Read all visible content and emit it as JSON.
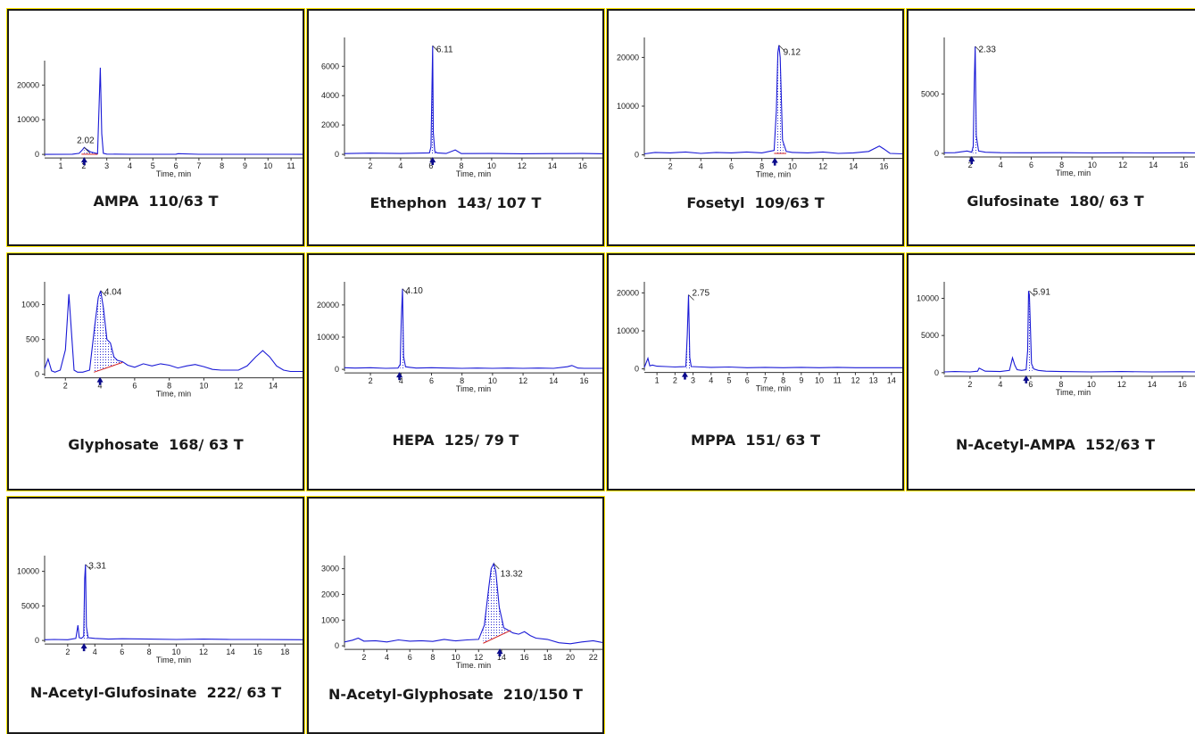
{
  "chart_data": [
    {
      "type": "line",
      "caption": "AMPA  110/63 T",
      "xlabel": "Time, min",
      "xlim": [
        0.3,
        11.5
      ],
      "ylim": [
        -1000,
        25500
      ],
      "xticks": [
        1,
        2,
        3,
        4,
        5,
        6,
        7,
        8,
        9,
        10,
        11
      ],
      "yticks": [
        0,
        10000,
        20000
      ],
      "peak_label": "2.02",
      "peak_rt": 2.02,
      "label_at": [
        1.7,
        3300
      ],
      "marker_at": 2.02,
      "series": [
        {
          "x": [
            0.3,
            1.5,
            1.8,
            1.95,
            2.02,
            2.1,
            2.3,
            2.6,
            2.72,
            2.78,
            2.85,
            3.0,
            4,
            5,
            6,
            6.1,
            7,
            8,
            9,
            10,
            11,
            11.5
          ],
          "y": [
            0,
            60,
            300,
            1400,
            2000,
            1600,
            700,
            200,
            25000,
            6000,
            300,
            80,
            30,
            40,
            50,
            200,
            40,
            30,
            30,
            20,
            20,
            10
          ]
        }
      ],
      "fill": [
        2.02,
        2.6
      ],
      "baseline": [
        [
          1.9,
          50
        ],
        [
          2.6,
          40
        ]
      ]
    },
    {
      "type": "line",
      "caption": "Ethephon  143/ 107 T",
      "xlabel": "Time, min",
      "xlim": [
        0.3,
        17.3
      ],
      "ylim": [
        -300,
        7600
      ],
      "xticks": [
        2,
        4,
        6,
        8,
        10,
        12,
        14,
        16
      ],
      "yticks": [
        0,
        2000,
        4000,
        6000
      ],
      "peak_label": "6.11",
      "peak_rt": 6.11,
      "label_at": [
        6.35,
        6950
      ],
      "marker_at": 6.11,
      "series": [
        {
          "x": [
            0.3,
            2,
            4,
            5.9,
            6.0,
            6.05,
            6.11,
            6.15,
            6.25,
            6.4,
            7,
            7.6,
            8,
            10,
            12,
            14,
            16,
            17.3
          ],
          "y": [
            50,
            80,
            60,
            100,
            500,
            3700,
            7400,
            1500,
            200,
            100,
            60,
            300,
            50,
            60,
            40,
            50,
            60,
            40
          ]
        }
      ],
      "fill": [
        6.0,
        6.3
      ],
      "baseline": []
    },
    {
      "type": "line",
      "caption": "Fosetyl  109/63 T",
      "xlabel": "Time, min",
      "xlim": [
        0.3,
        17.2
      ],
      "ylim": [
        -800,
        23000
      ],
      "xticks": [
        2,
        4,
        6,
        8,
        10,
        12,
        14,
        16
      ],
      "yticks": [
        0,
        10000,
        20000
      ],
      "peak_label": "9.12",
      "peak_rt": 9.12,
      "label_at": [
        9.4,
        20500
      ],
      "marker_at": 8.85,
      "series": [
        {
          "x": [
            0.3,
            1,
            2,
            3,
            4,
            5,
            6,
            7,
            8,
            8.8,
            8.95,
            9.05,
            9.12,
            9.2,
            9.35,
            9.6,
            10,
            11,
            12,
            13,
            14,
            15,
            15.7,
            16,
            16.4,
            17.2
          ],
          "y": [
            200,
            500,
            400,
            600,
            300,
            500,
            400,
            600,
            400,
            900,
            9000,
            21000,
            22500,
            20000,
            3000,
            700,
            500,
            400,
            600,
            300,
            400,
            700,
            1800,
            1200,
            300,
            200
          ]
        }
      ],
      "fill": [
        8.95,
        9.4
      ],
      "baseline": [
        [
          8.8,
          300
        ],
        [
          9.6,
          300
        ]
      ]
    },
    {
      "type": "line",
      "caption": "Glufosinate  180/ 63 T",
      "xlabel": "Time, min",
      "xlim": [
        0.3,
        17.2
      ],
      "ylim": [
        -300,
        9300
      ],
      "xticks": [
        2,
        4,
        6,
        8,
        10,
        12,
        14,
        16
      ],
      "yticks": [
        0,
        5000
      ],
      "peak_label": "2.33",
      "peak_rt": 2.33,
      "label_at": [
        2.55,
        8500
      ],
      "marker_at": 2.1,
      "series": [
        {
          "x": [
            0.3,
            1,
            1.8,
            2.1,
            2.2,
            2.27,
            2.33,
            2.4,
            2.55,
            3,
            4,
            6,
            8,
            10,
            12,
            14,
            16,
            17.2
          ],
          "y": [
            50,
            60,
            200,
            100,
            600,
            6000,
            9000,
            1500,
            200,
            100,
            60,
            50,
            60,
            40,
            50,
            40,
            50,
            40
          ]
        }
      ],
      "fill": [
        2.2,
        2.5
      ],
      "baseline": []
    },
    {
      "type": "line",
      "caption": "Glyphosate  168/ 63 T",
      "xlabel": "Time, min",
      "xlim": [
        0.8,
        15.7
      ],
      "ylim": [
        -30,
        1250
      ],
      "xticks": [
        2,
        4,
        6,
        8,
        10,
        12,
        14
      ],
      "yticks": [
        0,
        500,
        1000
      ],
      "peak_label": "4.04",
      "peak_rt": 4.04,
      "label_at": [
        4.25,
        1140
      ],
      "marker_at": 4.0,
      "series": [
        {
          "x": [
            0.8,
            1.0,
            1.2,
            1.4,
            1.7,
            2.0,
            2.2,
            2.35,
            2.5,
            2.7,
            3.0,
            3.4,
            3.7,
            3.9,
            4.04,
            4.2,
            4.4,
            4.6,
            4.8,
            5.0,
            5.3,
            5.6,
            6.0,
            6.5,
            7.0,
            7.5,
            8.0,
            8.5,
            9.0,
            9.5,
            10,
            10.5,
            11,
            11.5,
            12,
            12.5,
            13,
            13.4,
            13.8,
            14.2,
            14.6,
            15.0,
            15.7
          ],
          "y": [
            80,
            220,
            50,
            30,
            60,
            350,
            1150,
            600,
            60,
            30,
            30,
            60,
            700,
            1100,
            1200,
            950,
            500,
            450,
            250,
            200,
            180,
            130,
            100,
            150,
            120,
            150,
            130,
            90,
            120,
            140,
            110,
            70,
            60,
            60,
            60,
            120,
            250,
            340,
            250,
            120,
            60,
            40,
            40
          ]
        }
      ],
      "fill": [
        3.65,
        5.3
      ],
      "baseline": [
        [
          3.65,
          30
        ],
        [
          5.3,
          170
        ]
      ]
    },
    {
      "type": "line",
      "caption": "HEPA  125/ 79 T",
      "xlabel": "Time, min",
      "xlim": [
        0.3,
        17.2
      ],
      "ylim": [
        -800,
        25500
      ],
      "xticks": [
        2,
        4,
        6,
        8,
        10,
        12,
        14,
        16
      ],
      "yticks": [
        0,
        10000,
        20000
      ],
      "peak_label": "4.10",
      "peak_rt": 4.1,
      "label_at": [
        4.3,
        23500
      ],
      "marker_at": 3.9,
      "series": [
        {
          "x": [
            0.3,
            1,
            2,
            3,
            3.8,
            3.95,
            4.02,
            4.1,
            4.17,
            4.3,
            4.6,
            5,
            6,
            7,
            8,
            9,
            10,
            11,
            12,
            13,
            14,
            14.9,
            15.2,
            15.6,
            16,
            17.2
          ],
          "y": [
            500,
            400,
            500,
            300,
            400,
            1500,
            15000,
            25000,
            4000,
            800,
            600,
            400,
            500,
            400,
            300,
            400,
            300,
            400,
            300,
            400,
            300,
            800,
            1200,
            400,
            300,
            300
          ]
        }
      ],
      "fill": [
        3.95,
        4.25
      ],
      "baseline": []
    },
    {
      "type": "line",
      "caption": "MPPA  151/ 63 T",
      "xlabel": "Time, min",
      "xlim": [
        0.3,
        14.6
      ],
      "ylim": [
        -800,
        21500
      ],
      "xticks": [
        1,
        2,
        3,
        4,
        5,
        6,
        7,
        8,
        9,
        10,
        11,
        12,
        13,
        14
      ],
      "yticks": [
        0,
        10000,
        20000
      ],
      "peak_label": "2.75",
      "peak_rt": 2.75,
      "label_at": [
        2.95,
        19300
      ],
      "marker_at": 2.55,
      "series": [
        {
          "x": [
            0.3,
            0.5,
            0.6,
            0.75,
            1,
            1.5,
            2,
            2.6,
            2.68,
            2.75,
            2.82,
            2.9,
            3.5,
            4,
            5,
            6,
            7,
            8,
            9,
            10,
            11,
            12,
            13,
            14,
            14.6
          ],
          "y": [
            400,
            2800,
            800,
            1000,
            700,
            600,
            500,
            600,
            9000,
            19500,
            3000,
            600,
            500,
            400,
            500,
            300,
            400,
            300,
            400,
            300,
            400,
            300,
            300,
            300,
            300
          ]
        }
      ],
      "fill": [
        2.65,
        2.9
      ],
      "baseline": []
    },
    {
      "type": "line",
      "caption": "N-Acetyl-AMPA  152/63 T",
      "xlabel": "Time, min",
      "xlim": [
        0.3,
        17.3
      ],
      "ylim": [
        -500,
        11500
      ],
      "xticks": [
        2,
        4,
        6,
        8,
        10,
        12,
        14,
        16
      ],
      "yticks": [
        0,
        5000,
        10000
      ],
      "peak_label": "5.91",
      "peak_rt": 5.91,
      "label_at": [
        6.15,
        10500
      ],
      "marker_at": 5.7,
      "series": [
        {
          "x": [
            0.3,
            1,
            2,
            2.5,
            2.6,
            3,
            4,
            4.6,
            4.8,
            4.95,
            5.1,
            5.4,
            5.7,
            5.8,
            5.86,
            5.91,
            5.98,
            6.05,
            6.2,
            6.5,
            7,
            8,
            10,
            12,
            14,
            16,
            17.3
          ],
          "y": [
            100,
            150,
            100,
            200,
            600,
            200,
            150,
            300,
            2000,
            1000,
            400,
            300,
            400,
            3000,
            11000,
            10500,
            6000,
            1200,
            500,
            300,
            200,
            150,
            100,
            150,
            100,
            120,
            100
          ]
        }
      ],
      "fill": [
        5.8,
        6.1
      ],
      "baseline": []
    },
    {
      "type": "line",
      "caption": "N-Acetyl-Glufosinate  222/ 63 T",
      "xlabel": "Time, min",
      "xlim": [
        0.3,
        19.3
      ],
      "ylim": [
        -500,
        11500
      ],
      "xticks": [
        2,
        4,
        6,
        8,
        10,
        12,
        14,
        16,
        18
      ],
      "yticks": [
        0,
        5000,
        10000
      ],
      "peak_label": "3.31",
      "peak_rt": 3.31,
      "label_at": [
        3.55,
        10400
      ],
      "marker_at": 3.2,
      "series": [
        {
          "x": [
            0.3,
            1,
            2,
            2.6,
            2.75,
            2.85,
            3.0,
            3.18,
            3.25,
            3.31,
            3.38,
            3.5,
            4,
            5,
            6,
            8,
            10,
            12,
            14,
            16,
            18,
            19.3
          ],
          "y": [
            100,
            150,
            100,
            300,
            2200,
            400,
            300,
            600,
            9000,
            11000,
            2000,
            400,
            300,
            200,
            250,
            200,
            150,
            200,
            150,
            150,
            120,
            100
          ]
        }
      ],
      "fill": [
        3.2,
        3.45
      ],
      "baseline": []
    },
    {
      "type": "line",
      "caption": "N-Acetyl-Glyphosate  210/150 T",
      "xlabel": "Time, min",
      "xlim": [
        0.3,
        22.8
      ],
      "ylim": [
        -100,
        3300
      ],
      "xticks": [
        2,
        4,
        6,
        8,
        10,
        12,
        14,
        16,
        18,
        20,
        22
      ],
      "yticks": [
        0,
        1000,
        2000,
        3000
      ],
      "peak_label": "13.32",
      "peak_rt": 13.32,
      "label_at": [
        13.9,
        2700
      ],
      "marker_at": 13.85,
      "series": [
        {
          "x": [
            0.3,
            1,
            1.5,
            2,
            3,
            4,
            5,
            6,
            7,
            8,
            9,
            10,
            11,
            12,
            12.5,
            12.9,
            13.1,
            13.32,
            13.5,
            13.8,
            14.2,
            14.6,
            15,
            15.5,
            16,
            16.5,
            17,
            18,
            19,
            20,
            21,
            22,
            22.8
          ],
          "y": [
            150,
            220,
            300,
            180,
            200,
            150,
            230,
            180,
            200,
            170,
            250,
            190,
            230,
            250,
            800,
            2300,
            3000,
            3200,
            2900,
            1500,
            700,
            600,
            500,
            450,
            550,
            400,
            300,
            250,
            120,
            80,
            150,
            200,
            130
          ]
        }
      ],
      "fill": [
        12.4,
        14.8
      ],
      "baseline": [
        [
          12.4,
          100
        ],
        [
          14.8,
          600
        ]
      ]
    }
  ]
}
